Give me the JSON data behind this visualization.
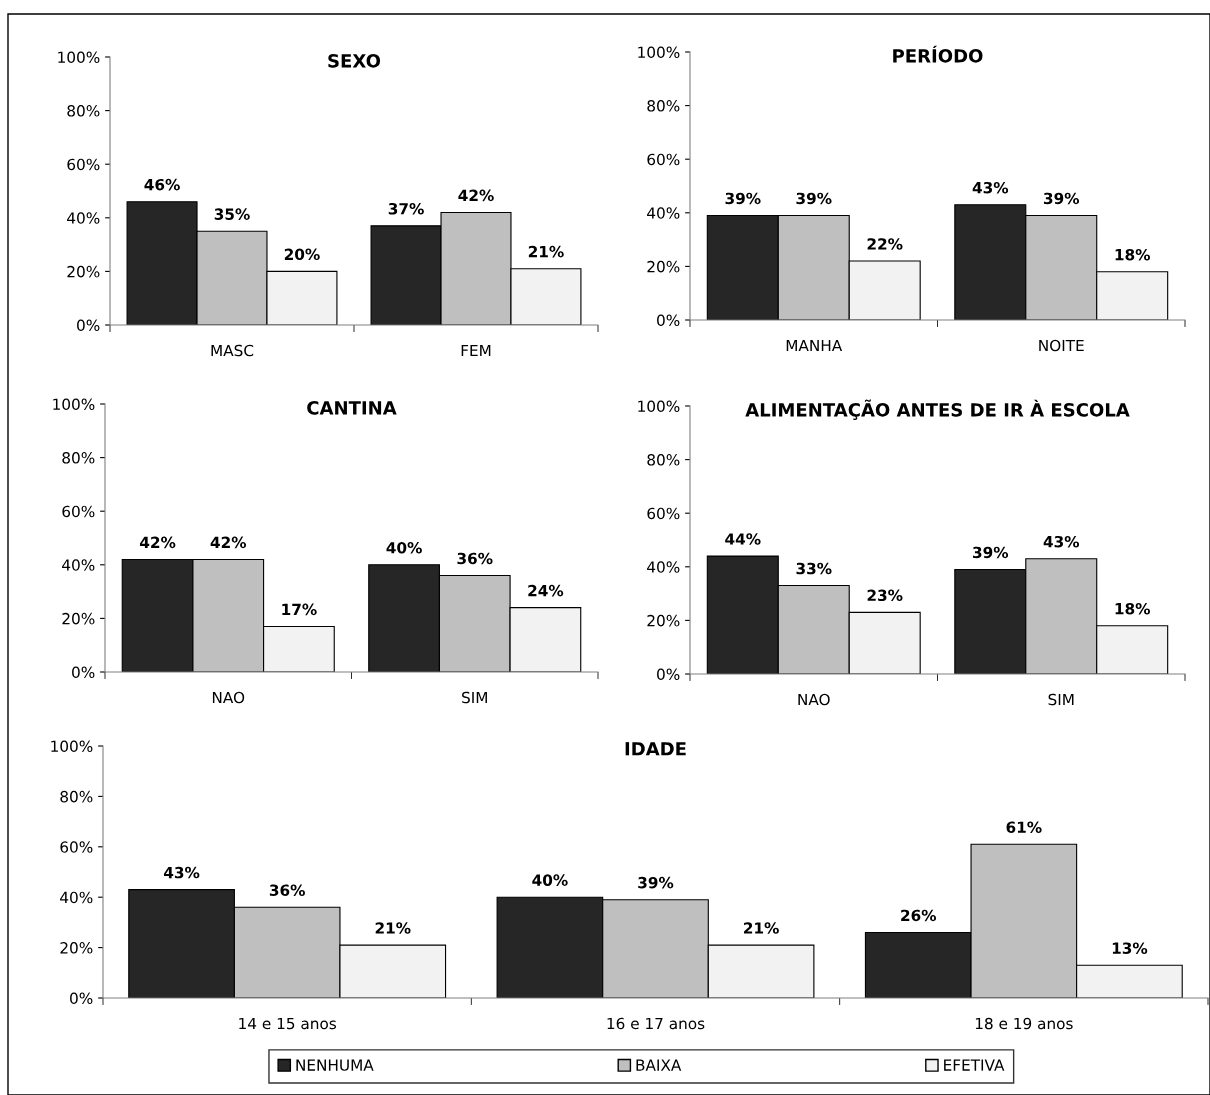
{
  "chart_data": [
    {
      "type": "bar",
      "title": "SEXO",
      "categories": [
        "MASC",
        "FEM"
      ],
      "ylim": [
        0,
        100
      ],
      "yticks": [
        {
          "value": 0,
          "label": "0%"
        },
        {
          "value": 20,
          "label": "20%"
        },
        {
          "value": 40,
          "label": "40%"
        },
        {
          "value": 60,
          "label": "60%"
        },
        {
          "value": 80,
          "label": "80%"
        },
        {
          "value": 100,
          "label": "100%"
        }
      ],
      "grid": false,
      "legend": "bottom",
      "series": [
        {
          "name": "NENHUMA",
          "color": "#262626",
          "values": [
            46,
            37
          ],
          "value_labels": [
            "46%",
            "37%"
          ]
        },
        {
          "name": "BAIXA",
          "color": "#bfbfbf",
          "values": [
            35,
            42
          ],
          "value_labels": [
            "35%",
            "42%"
          ]
        },
        {
          "name": "EFETIVA",
          "color": "#f2f2f2",
          "values": [
            20,
            21
          ],
          "value_labels": [
            "20%",
            "21%"
          ]
        }
      ]
    },
    {
      "type": "bar",
      "title": "PERÍODO",
      "categories": [
        "MANHA",
        "NOITE"
      ],
      "ylim": [
        0,
        100
      ],
      "yticks": [
        {
          "value": 0,
          "label": "0%"
        },
        {
          "value": 20,
          "label": "20%"
        },
        {
          "value": 40,
          "label": "40%"
        },
        {
          "value": 60,
          "label": "60%"
        },
        {
          "value": 80,
          "label": "80%"
        },
        {
          "value": 100,
          "label": "100%"
        }
      ],
      "grid": false,
      "legend": "bottom",
      "series": [
        {
          "name": "NENHUMA",
          "color": "#262626",
          "values": [
            39,
            43
          ],
          "value_labels": [
            "39%",
            "43%"
          ]
        },
        {
          "name": "BAIXA",
          "color": "#bfbfbf",
          "values": [
            39,
            39
          ],
          "value_labels": [
            "39%",
            "39%"
          ]
        },
        {
          "name": "EFETIVA",
          "color": "#f2f2f2",
          "values": [
            22,
            18
          ],
          "value_labels": [
            "22%",
            "18%"
          ]
        }
      ]
    },
    {
      "type": "bar",
      "title": "CANTINA",
      "categories": [
        "NAO",
        "SIM"
      ],
      "ylim": [
        0,
        100
      ],
      "yticks": [
        {
          "value": 0,
          "label": "0%"
        },
        {
          "value": 20,
          "label": "20%"
        },
        {
          "value": 40,
          "label": "40%"
        },
        {
          "value": 60,
          "label": "60%"
        },
        {
          "value": 80,
          "label": "80%"
        },
        {
          "value": 100,
          "label": "100%"
        }
      ],
      "grid": false,
      "legend": "bottom",
      "series": [
        {
          "name": "NENHUMA",
          "color": "#262626",
          "values": [
            42,
            40
          ],
          "value_labels": [
            "42%",
            "40%"
          ]
        },
        {
          "name": "BAIXA",
          "color": "#bfbfbf",
          "values": [
            42,
            36
          ],
          "value_labels": [
            "42%",
            "36%"
          ]
        },
        {
          "name": "EFETIVA",
          "color": "#f2f2f2",
          "values": [
            17,
            24
          ],
          "value_labels": [
            "17%",
            "24%"
          ]
        }
      ]
    },
    {
      "type": "bar",
      "title": "ALIMENTAÇÃO ANTES DE IR À ESCOLA",
      "categories": [
        "NAO",
        "SIM"
      ],
      "ylim": [
        0,
        100
      ],
      "yticks": [
        {
          "value": 0,
          "label": "0%"
        },
        {
          "value": 20,
          "label": "20%"
        },
        {
          "value": 40,
          "label": "40%"
        },
        {
          "value": 60,
          "label": "60%"
        },
        {
          "value": 80,
          "label": "80%"
        },
        {
          "value": 100,
          "label": "100%"
        }
      ],
      "grid": false,
      "legend": "bottom",
      "series": [
        {
          "name": "NENHUMA",
          "color": "#262626",
          "values": [
            44,
            39
          ],
          "value_labels": [
            "44%",
            "39%"
          ]
        },
        {
          "name": "BAIXA",
          "color": "#bfbfbf",
          "values": [
            33,
            43
          ],
          "value_labels": [
            "33%",
            "43%"
          ]
        },
        {
          "name": "EFETIVA",
          "color": "#f2f2f2",
          "values": [
            23,
            18
          ],
          "value_labels": [
            "23%",
            "18%"
          ]
        }
      ]
    },
    {
      "type": "bar",
      "title": "IDADE",
      "categories": [
        "14 e 15 anos",
        "16 e 17 anos",
        "18 e 19 anos"
      ],
      "ylim": [
        0,
        100
      ],
      "yticks": [
        {
          "value": 0,
          "label": "0%"
        },
        {
          "value": 20,
          "label": "20%"
        },
        {
          "value": 40,
          "label": "40%"
        },
        {
          "value": 60,
          "label": "60%"
        },
        {
          "value": 80,
          "label": "80%"
        },
        {
          "value": 100,
          "label": "100%"
        }
      ],
      "grid": false,
      "legend": "bottom",
      "series": [
        {
          "name": "NENHUMA",
          "color": "#262626",
          "values": [
            43,
            40,
            26
          ],
          "value_labels": [
            "43%",
            "40%",
            "26%"
          ]
        },
        {
          "name": "BAIXA",
          "color": "#bfbfbf",
          "values": [
            36,
            39,
            61
          ],
          "value_labels": [
            "36%",
            "39%",
            "61%"
          ]
        },
        {
          "name": "EFETIVA",
          "color": "#f2f2f2",
          "values": [
            21,
            21,
            13
          ],
          "value_labels": [
            "21%",
            "21%",
            "13%"
          ]
        }
      ]
    }
  ]
}
